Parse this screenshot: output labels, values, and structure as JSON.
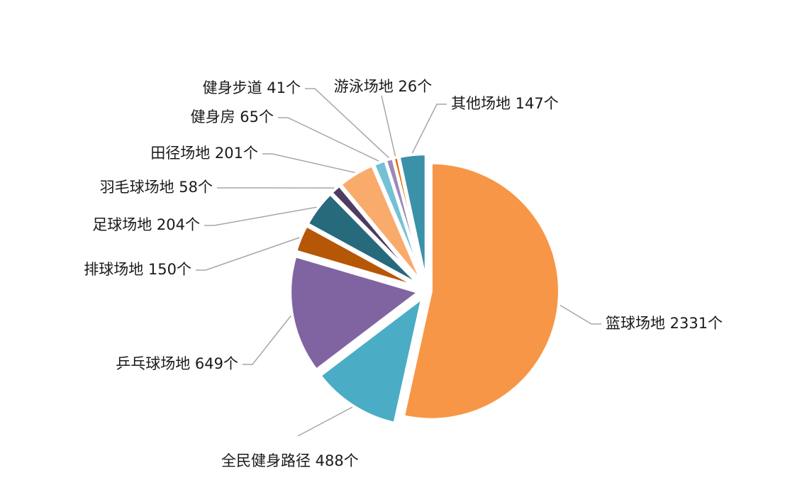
{
  "chart_data": {
    "type": "pie",
    "title": "",
    "unit": "个",
    "slices": [
      {
        "label": "篮球场地",
        "value": 2331,
        "display": "篮球场地 2331个",
        "color": "#F79646"
      },
      {
        "label": "全民健身路径",
        "value": 488,
        "display": "全民健身路径 488个",
        "color": "#4BACC6"
      },
      {
        "label": "乒乓球场地",
        "value": 649,
        "display": "乒乓球场地 649个",
        "color": "#8064A2"
      },
      {
        "label": "排球场地",
        "value": 150,
        "display": "排球场地 150个",
        "color": "#B65708"
      },
      {
        "label": "足球场地",
        "value": 204,
        "display": "足球场地 204个",
        "color": "#276A7C"
      },
      {
        "label": "羽毛球场地",
        "value": 58,
        "display": "羽毛球场地 58个",
        "color": "#4D3B62"
      },
      {
        "label": "田径场地",
        "value": 201,
        "display": "田径场地 201个",
        "color": "#F9AB6B"
      },
      {
        "label": "健身房",
        "value": 65,
        "display": "健身房 65个",
        "color": "#74C1D6"
      },
      {
        "label": "健身步道",
        "value": 41,
        "display": "健身步道 41个",
        "color": "#9C89BA"
      },
      {
        "label": "游泳场地",
        "value": 26,
        "display": "游泳场地 26个",
        "color": "#E46C0A"
      },
      {
        "label": "其他场地",
        "value": 147,
        "display": "其他场地 147个",
        "color": "#3A91A8"
      }
    ]
  }
}
